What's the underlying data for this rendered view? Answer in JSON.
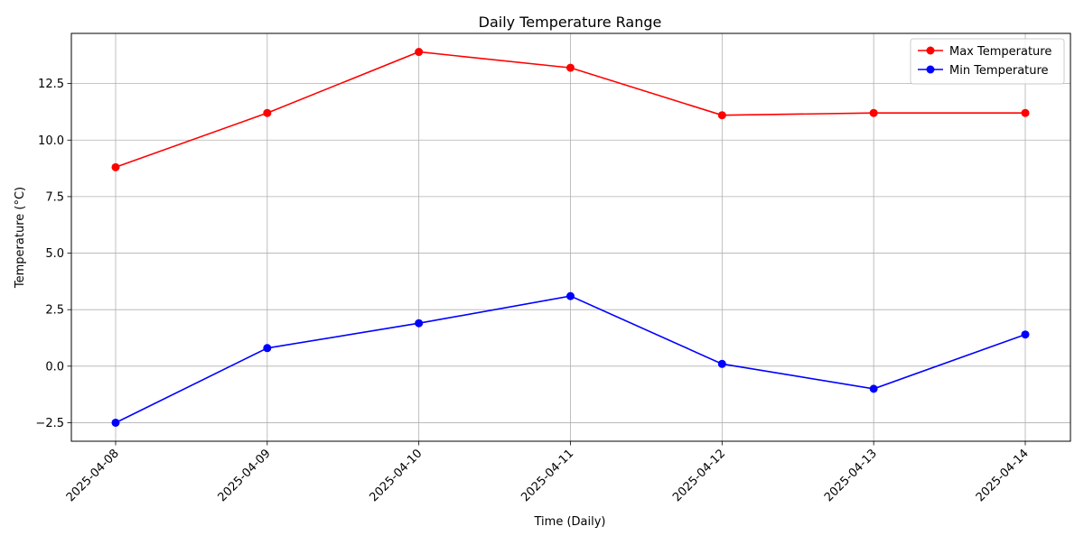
{
  "chart_data": {
    "type": "line",
    "title": "Daily Temperature Range",
    "xlabel": "Time (Daily)",
    "ylabel": "Temperature (°C)",
    "categories": [
      "2025-04-08",
      "2025-04-09",
      "2025-04-10",
      "2025-04-11",
      "2025-04-12",
      "2025-04-13",
      "2025-04-14"
    ],
    "series": [
      {
        "name": "Max Temperature",
        "color": "#ff0000",
        "values": [
          8.8,
          11.2,
          13.9,
          13.2,
          11.1,
          11.2,
          11.2
        ]
      },
      {
        "name": "Min Temperature",
        "color": "#0000ff",
        "values": [
          -2.5,
          0.8,
          1.9,
          3.1,
          0.1,
          -1.0,
          1.4
        ]
      }
    ],
    "yticks": [
      -2.5,
      0.0,
      2.5,
      5.0,
      7.5,
      10.0,
      12.5
    ],
    "ytick_labels": [
      "−2.5",
      "0.0",
      "2.5",
      "5.0",
      "7.5",
      "10.0",
      "12.5"
    ],
    "ylim": [
      -3.32,
      14.72
    ],
    "grid": true,
    "legend_position": "top-right",
    "marker": "circle"
  }
}
